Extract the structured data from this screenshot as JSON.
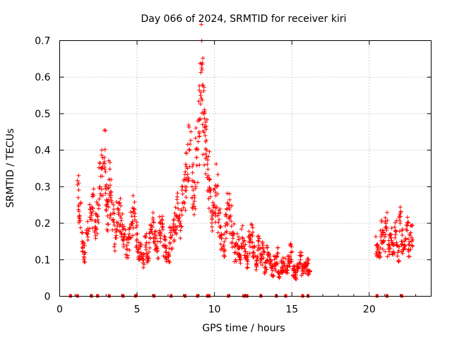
{
  "chart_data": {
    "type": "scatter",
    "title": "Day 066 of 2024, SRMTID for receiver kiri",
    "xlabel": "GPS time / hours",
    "ylabel": "SRMTID / TECUs",
    "xlim": [
      0,
      24
    ],
    "ylim": [
      0,
      0.7
    ],
    "xticks": [
      "0",
      "5",
      "10",
      "15",
      "20"
    ],
    "xtick_values": [
      0,
      5,
      10,
      15,
      20
    ],
    "yticks": [
      "0",
      "0.1",
      "0.2",
      "0.3",
      "0.4",
      "0.5",
      "0.6",
      "0.7"
    ],
    "ytick_values": [
      0,
      0.1,
      0.2,
      0.3,
      0.4,
      0.5,
      0.6,
      0.7
    ],
    "grid": true,
    "marker": "+",
    "series_color": "#ff0000",
    "data_gaps_hours": [
      [
        16.2,
        20.4
      ]
    ],
    "series": [
      {
        "name": "SRMTID",
        "x": [
          1.2,
          1.3,
          1.45,
          1.6,
          1.8,
          2.0,
          2.15,
          2.3,
          2.45,
          2.6,
          2.75,
          2.9,
          3.0,
          3.1,
          3.2,
          3.3,
          3.45,
          3.6,
          3.75,
          3.9,
          4.05,
          4.2,
          4.35,
          4.5,
          4.65,
          4.8,
          4.95,
          5.1,
          5.25,
          5.4,
          5.55,
          5.7,
          5.85,
          6.0,
          6.15,
          6.3,
          6.45,
          6.6,
          6.75,
          6.9,
          7.05,
          7.2,
          7.35,
          7.5,
          7.65,
          7.8,
          7.95,
          8.1,
          8.25,
          8.4,
          8.55,
          8.7,
          8.85,
          9.0,
          9.1,
          9.2,
          9.3,
          9.4,
          9.5,
          9.6,
          9.7,
          9.85,
          10.0,
          10.15,
          10.3,
          10.45,
          10.6,
          10.75,
          10.9,
          11.05,
          11.2,
          11.35,
          11.5,
          11.65,
          11.8,
          11.95,
          12.1,
          12.25,
          12.4,
          12.55,
          12.7,
          12.85,
          13.0,
          13.15,
          13.3,
          13.45,
          13.6,
          13.75,
          13.9,
          14.05,
          14.2,
          14.35,
          14.5,
          14.65,
          14.8,
          14.95,
          15.1,
          15.25,
          15.4,
          15.55,
          15.7,
          15.85,
          16.0,
          16.1,
          20.5,
          20.65,
          20.8,
          20.95,
          21.1,
          21.25,
          21.4,
          21.55,
          21.7,
          21.85,
          22.0,
          22.15,
          22.3,
          22.45,
          22.6,
          22.75
        ],
        "y": [
          0.27,
          0.22,
          0.15,
          0.12,
          0.17,
          0.21,
          0.24,
          0.19,
          0.22,
          0.3,
          0.35,
          0.38,
          0.25,
          0.22,
          0.32,
          0.27,
          0.21,
          0.16,
          0.24,
          0.22,
          0.19,
          0.17,
          0.13,
          0.16,
          0.2,
          0.24,
          0.17,
          0.13,
          0.12,
          0.1,
          0.14,
          0.11,
          0.16,
          0.19,
          0.15,
          0.13,
          0.18,
          0.21,
          0.14,
          0.12,
          0.11,
          0.16,
          0.18,
          0.22,
          0.24,
          0.2,
          0.28,
          0.3,
          0.35,
          0.4,
          0.3,
          0.26,
          0.38,
          0.45,
          0.55,
          0.62,
          0.5,
          0.44,
          0.4,
          0.33,
          0.29,
          0.22,
          0.25,
          0.3,
          0.21,
          0.16,
          0.14,
          0.2,
          0.25,
          0.22,
          0.17,
          0.12,
          0.14,
          0.11,
          0.16,
          0.13,
          0.1,
          0.15,
          0.17,
          0.12,
          0.09,
          0.14,
          0.11,
          0.13,
          0.08,
          0.12,
          0.1,
          0.07,
          0.09,
          0.11,
          0.06,
          0.08,
          0.09,
          0.07,
          0.1,
          0.12,
          0.07,
          0.06,
          0.08,
          0.1,
          0.07,
          0.08,
          0.09,
          0.06,
          0.14,
          0.12,
          0.17,
          0.15,
          0.19,
          0.13,
          0.16,
          0.14,
          0.18,
          0.12,
          0.2,
          0.15,
          0.13,
          0.18,
          0.14,
          0.16
        ]
      }
    ],
    "rug_x": [
      0.7,
      1.15,
      2.05,
      2.45,
      3.2,
      4.1,
      4.9,
      6.1,
      7.2,
      8.1,
      8.9,
      9.55,
      9.65,
      10.9,
      11.9,
      12.1,
      13.0,
      14.0,
      14.6,
      15.7,
      16.05,
      20.5,
      21.15,
      22.1
    ]
  }
}
